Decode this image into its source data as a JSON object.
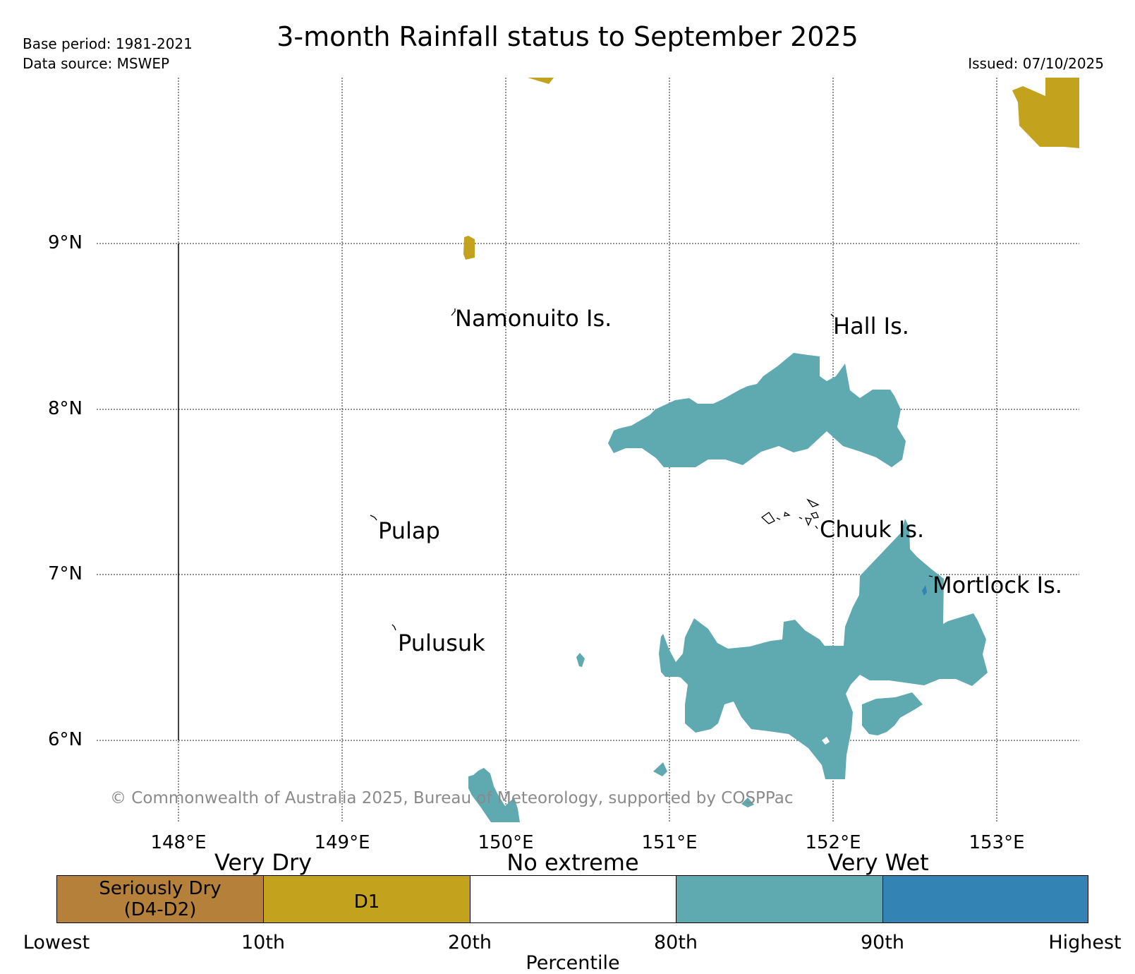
{
  "meta": {
    "base_period": "Base period: 1981-2021",
    "data_source": "Data source: MSWEP",
    "issued": "Issued: 07/10/2025"
  },
  "title": "3-month Rainfall status to September 2025",
  "map": {
    "lat_labels": [
      "9°N",
      "8°N",
      "7°N",
      "6°N"
    ],
    "lon_labels": [
      "148°E",
      "149°E",
      "150°E",
      "151°E",
      "152°E",
      "153°E"
    ],
    "places": [
      {
        "name": "Namonuito Is."
      },
      {
        "name": "Hall Is."
      },
      {
        "name": "Pulap"
      },
      {
        "name": "Chuuk Is."
      },
      {
        "name": "Mortlock Is."
      },
      {
        "name": "Pulusuk"
      }
    ],
    "copyright": "© Commonwealth of Australia 2025, Bureau of Meteorology, supported by COSPPac"
  },
  "legend": {
    "categories": [
      "Very Dry",
      "No extreme",
      "Very Wet"
    ],
    "segments": [
      {
        "label": "Seriously Dry (D4-D2)",
        "line1": "Seriously Dry",
        "line2": "(D4-D2)",
        "color": "#b5803a"
      },
      {
        "label": "D1",
        "color": "#c3a31e"
      },
      {
        "label": "",
        "color": "#ffffff"
      },
      {
        "label": "",
        "color": "#5fa9b0"
      },
      {
        "label": "",
        "color": "#3383b4"
      }
    ],
    "percentiles": [
      "Lowest",
      "10th",
      "20th",
      "80th",
      "90th",
      "Highest"
    ],
    "axis_label": "Percentile"
  }
}
